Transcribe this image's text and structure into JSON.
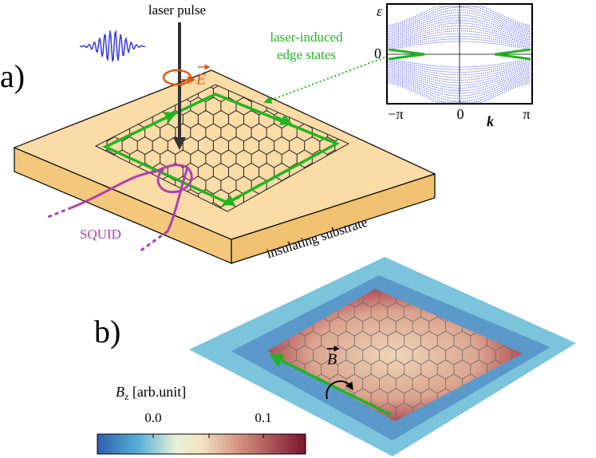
{
  "panel_a": {
    "label": "a)",
    "laser": "laser pulse",
    "field": "E",
    "edge_states": [
      "laser-induced",
      "edge states"
    ],
    "squid": "SQUID",
    "substrate": "insulating substrate",
    "inset": {
      "y_label": "ε",
      "y_tick": "0",
      "x_label": "k",
      "x_ticks": [
        "−π",
        "0",
        "π"
      ]
    }
  },
  "panel_b": {
    "label": "b)",
    "field": "B",
    "colorbar": {
      "symbol": "B",
      "sub": "z",
      "unit": " [arb.unit]",
      "ticks": [
        "0.0",
        "0.1"
      ]
    }
  }
}
